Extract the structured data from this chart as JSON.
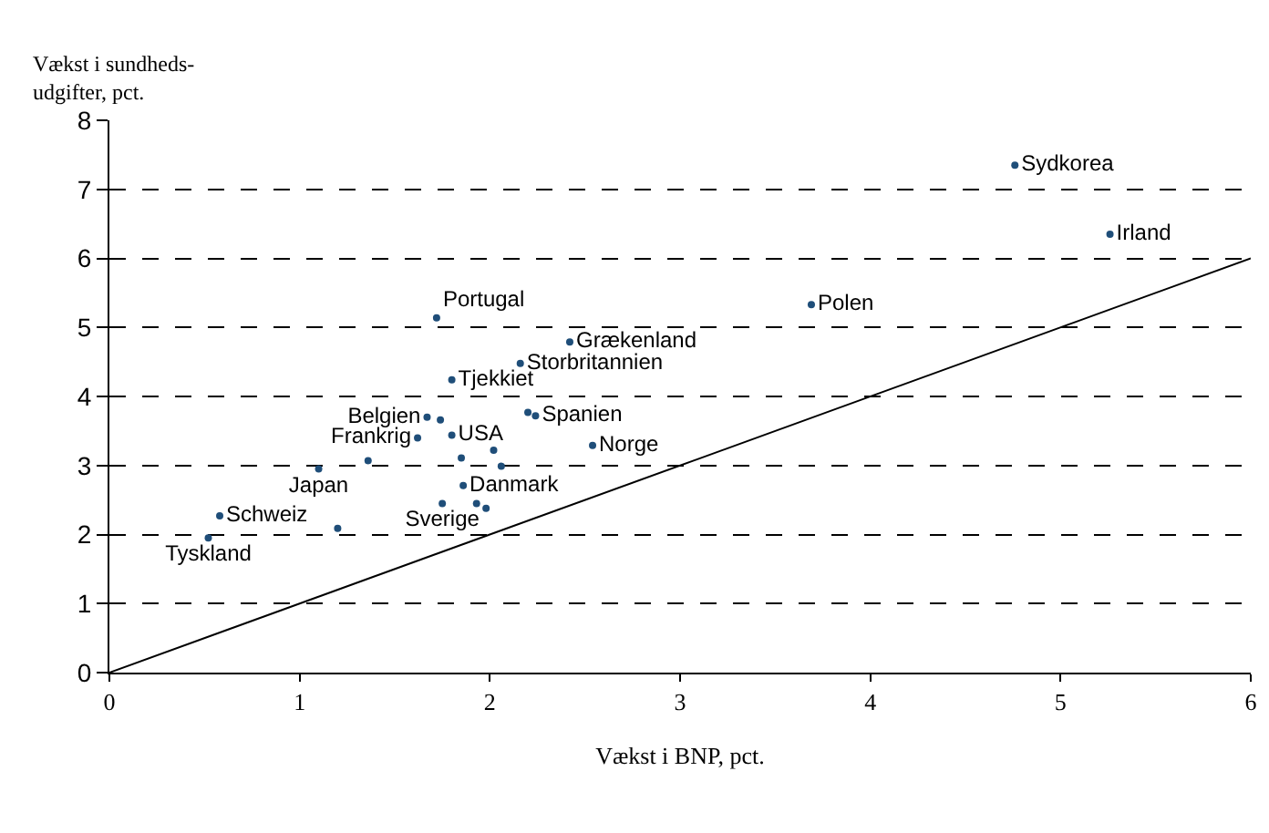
{
  "chart_data": {
    "type": "scatter",
    "xlabel": "Vækst i BNP, pct.",
    "ylabel": "Vækst i sundheds-\nudgifter, pct.",
    "xlim": [
      0,
      6
    ],
    "xticks": [
      0,
      1,
      2,
      3,
      4,
      5,
      6
    ],
    "ylim": [
      0,
      8
    ],
    "yticks": [
      0,
      1,
      2,
      3,
      4,
      5,
      6,
      7,
      8
    ],
    "grid": "y",
    "series": [
      {
        "marker": "circle",
        "color": "#1f4e79",
        "x": [
          4.76,
          5.26,
          3.69,
          1.72,
          2.42,
          2.16,
          1.8,
          2.2,
          2.24,
          1.67,
          1.74,
          1.8,
          1.62,
          2.54,
          2.02,
          1.85,
          1.36,
          2.06,
          1.1,
          1.86,
          1.75,
          1.93,
          1.98,
          0.58,
          1.2,
          0.52
        ],
        "values": [
          7.35,
          6.35,
          5.33,
          5.14,
          4.79,
          4.48,
          4.24,
          3.77,
          3.72,
          3.7,
          3.66,
          3.44,
          3.4,
          3.29,
          3.22,
          3.11,
          3.07,
          2.99,
          2.95,
          2.71,
          2.45,
          2.45,
          2.38,
          2.27,
          2.09,
          1.95
        ],
        "value_labels": [
          "Sydkorea",
          "Irland",
          "Polen",
          "Portugal",
          "Grækenland",
          "Storbritannien",
          "Tjekkiet",
          null,
          "Spanien",
          "Belgien",
          null,
          "USA",
          "Frankrig",
          "Norge",
          null,
          null,
          null,
          null,
          "Japan",
          "Danmark",
          "Sverige",
          null,
          null,
          "Schweiz",
          null,
          "Tyskland"
        ]
      },
      {
        "type": "line",
        "color": "#000000",
        "x": [
          0,
          6
        ],
        "values": [
          0,
          6
        ],
        "line_style": "solid",
        "marker": "none"
      }
    ]
  }
}
